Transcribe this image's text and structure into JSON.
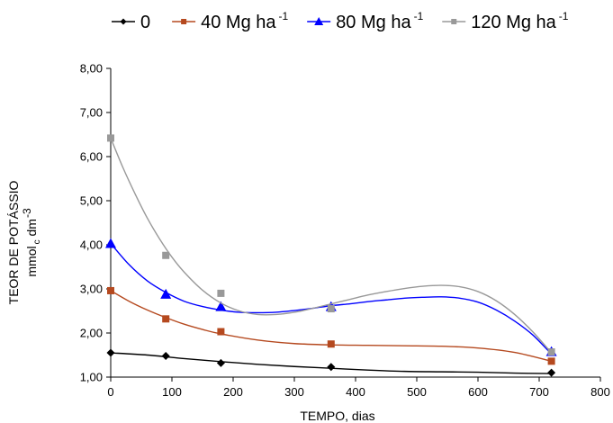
{
  "chart_data": {
    "type": "scatter",
    "xlabel": "TEMPO, dias",
    "ylabel_line1": "TEOR DE POTÁSSIO",
    "ylabel_line2": {
      "main": "mmol",
      "sub": "c",
      "unit": " dm",
      "sup": "-3"
    },
    "xlim": [
      0,
      800
    ],
    "ylim": [
      1,
      8
    ],
    "xticks": [
      0,
      100,
      200,
      300,
      400,
      500,
      600,
      700,
      800
    ],
    "yticks": [
      1,
      2,
      3,
      4,
      5,
      6,
      7,
      8
    ],
    "xtick_labels": [
      "0",
      "100",
      "200",
      "300",
      "400",
      "500",
      "600",
      "700",
      "800"
    ],
    "ytick_labels": [
      "1,00",
      "2,00",
      "3,00",
      "4,00",
      "5,00",
      "6,00",
      "7,00",
      "8,00"
    ],
    "grid": false,
    "legend_position": "top",
    "series": [
      {
        "name": "0",
        "name_sup": "",
        "color": "#000000",
        "marker": "diamond",
        "x": [
          0,
          90,
          180,
          360,
          720
        ],
        "y": [
          1.55,
          1.48,
          1.32,
          1.23,
          1.1
        ],
        "trend": [
          [
            0,
            1.55
          ],
          [
            60,
            1.5
          ],
          [
            120,
            1.42
          ],
          [
            180,
            1.35
          ],
          [
            240,
            1.29
          ],
          [
            300,
            1.24
          ],
          [
            360,
            1.2
          ],
          [
            420,
            1.16
          ],
          [
            480,
            1.13
          ],
          [
            540,
            1.12
          ],
          [
            600,
            1.11
          ],
          [
            660,
            1.09
          ],
          [
            720,
            1.08
          ]
        ]
      },
      {
        "name": "40 Mg ha",
        "name_sup": "-1",
        "color": "#b5491f",
        "marker": "square",
        "x": [
          0,
          90,
          180,
          360,
          720
        ],
        "y": [
          2.96,
          2.32,
          2.03,
          1.75,
          1.36
        ],
        "trend": [
          [
            0,
            2.96
          ],
          [
            30,
            2.72
          ],
          [
            60,
            2.52
          ],
          [
            90,
            2.35
          ],
          [
            120,
            2.2
          ],
          [
            150,
            2.08
          ],
          [
            180,
            1.98
          ],
          [
            240,
            1.84
          ],
          [
            300,
            1.76
          ],
          [
            360,
            1.73
          ],
          [
            420,
            1.72
          ],
          [
            480,
            1.71
          ],
          [
            540,
            1.7
          ],
          [
            600,
            1.66
          ],
          [
            660,
            1.56
          ],
          [
            720,
            1.36
          ]
        ]
      },
      {
        "name": "80 Mg ha",
        "name_sup": "-1",
        "color": "#0000ff",
        "marker": "triangle",
        "x": [
          0,
          90,
          180,
          360,
          720
        ],
        "y": [
          4.03,
          2.88,
          2.6,
          2.6,
          1.58
        ],
        "trend": [
          [
            0,
            4.03
          ],
          [
            30,
            3.55
          ],
          [
            60,
            3.18
          ],
          [
            90,
            2.92
          ],
          [
            120,
            2.72
          ],
          [
            150,
            2.6
          ],
          [
            180,
            2.52
          ],
          [
            210,
            2.47
          ],
          [
            240,
            2.46
          ],
          [
            270,
            2.47
          ],
          [
            300,
            2.51
          ],
          [
            330,
            2.56
          ],
          [
            360,
            2.62
          ],
          [
            390,
            2.66
          ],
          [
            420,
            2.71
          ],
          [
            450,
            2.75
          ],
          [
            480,
            2.79
          ],
          [
            510,
            2.81
          ],
          [
            540,
            2.82
          ],
          [
            570,
            2.79
          ],
          [
            600,
            2.7
          ],
          [
            630,
            2.52
          ],
          [
            660,
            2.27
          ],
          [
            690,
            1.95
          ],
          [
            720,
            1.52
          ]
        ]
      },
      {
        "name": "120 Mg ha",
        "name_sup": "-1",
        "color": "#999999",
        "marker": "square",
        "x": [
          0,
          90,
          180,
          360,
          720
        ],
        "y": [
          6.42,
          3.76,
          2.9,
          2.55,
          1.57
        ],
        "trend": [
          [
            0,
            6.42
          ],
          [
            20,
            5.75
          ],
          [
            40,
            5.15
          ],
          [
            60,
            4.6
          ],
          [
            80,
            4.13
          ],
          [
            100,
            3.72
          ],
          [
            120,
            3.38
          ],
          [
            150,
            2.97
          ],
          [
            180,
            2.68
          ],
          [
            210,
            2.5
          ],
          [
            240,
            2.42
          ],
          [
            270,
            2.42
          ],
          [
            300,
            2.47
          ],
          [
            330,
            2.56
          ],
          [
            360,
            2.66
          ],
          [
            390,
            2.76
          ],
          [
            420,
            2.86
          ],
          [
            450,
            2.94
          ],
          [
            480,
            3.01
          ],
          [
            510,
            3.06
          ],
          [
            540,
            3.08
          ],
          [
            570,
            3.05
          ],
          [
            600,
            2.94
          ],
          [
            630,
            2.73
          ],
          [
            660,
            2.42
          ],
          [
            690,
            2.02
          ],
          [
            720,
            1.55
          ]
        ]
      }
    ]
  }
}
